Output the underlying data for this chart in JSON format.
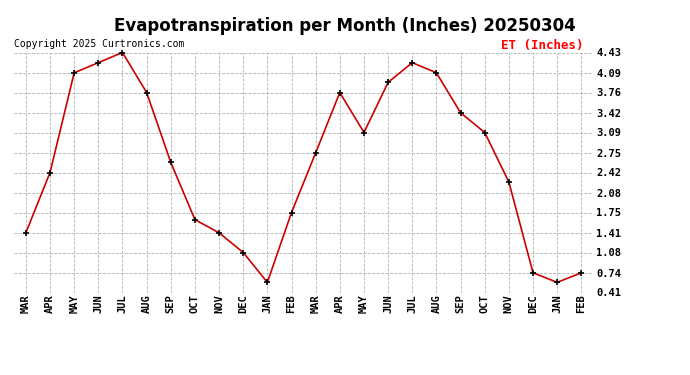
{
  "title": "Evapotranspiration per Month (Inches) 20250304",
  "copyright": "Copyright 2025 Curtronics.com",
  "legend_label": "ET (Inches)",
  "months": [
    "MAR",
    "APR",
    "MAY",
    "JUN",
    "JUL",
    "AUG",
    "SEP",
    "OCT",
    "NOV",
    "DEC",
    "JAN",
    "FEB",
    "MAR",
    "APR",
    "MAY",
    "JUN",
    "JUL",
    "AUG",
    "SEP",
    "OCT",
    "NOV",
    "DEC",
    "JAN",
    "FEB"
  ],
  "values": [
    1.41,
    2.42,
    4.09,
    4.26,
    4.43,
    3.76,
    2.59,
    1.63,
    1.41,
    1.08,
    0.58,
    1.75,
    2.75,
    3.76,
    3.09,
    3.93,
    4.26,
    4.09,
    3.42,
    3.09,
    2.26,
    0.74,
    0.58,
    0.74
  ],
  "line_color": "#cc0000",
  "marker_color": "#000000",
  "bg_color": "#ffffff",
  "grid_color": "#aaaaaa",
  "yticks": [
    0.41,
    0.74,
    1.08,
    1.41,
    1.75,
    2.08,
    2.42,
    2.75,
    3.09,
    3.42,
    3.76,
    4.09,
    4.43
  ],
  "ymin": 0.41,
  "ymax": 4.43,
  "title_fontsize": 12,
  "tick_fontsize": 7.5,
  "copyright_fontsize": 7,
  "legend_fontsize": 9
}
